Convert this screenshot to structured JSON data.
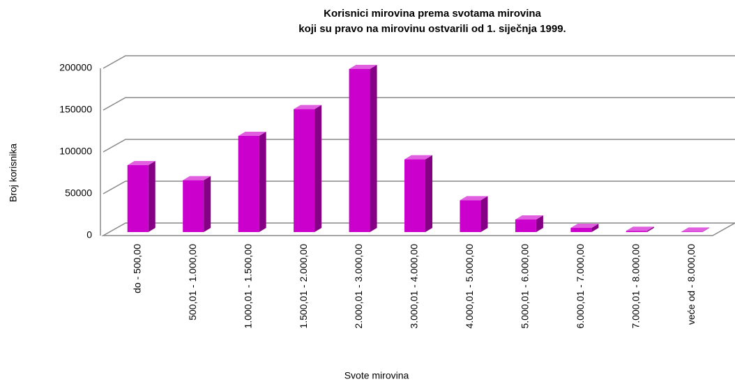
{
  "chart_data": {
    "type": "bar3d",
    "title": [
      "Korisnici mirovina prema svotama mirovina",
      "koji su pravo na mirovinu ostvarili od 1. siječnja 1999."
    ],
    "x_label": "Svote mirovina",
    "y_label": "Broj korisnika",
    "categories": [
      "do - 500,00",
      "500,01 - 1.000,00",
      "1.000,01 - 1.500,00",
      "1.500,01 - 2.000,00",
      "2.000,01 - 3.000,00",
      "3.000,01 - 4.000,00",
      "4.000,01 - 5.000,00",
      "5.000,01 - 6.000,00",
      "6.000,01 - 7.000,00",
      "7.000,01 - 8.000,00",
      "veće od  - 8.000,00"
    ],
    "values": [
      80000,
      62000,
      115000,
      147000,
      195000,
      87000,
      38000,
      15000,
      5000,
      1500,
      500
    ],
    "color": "#cc00cc",
    "ylim": [
      0,
      200000
    ],
    "yticks": [
      0,
      50000,
      100000,
      150000,
      200000
    ],
    "grid": true
  }
}
